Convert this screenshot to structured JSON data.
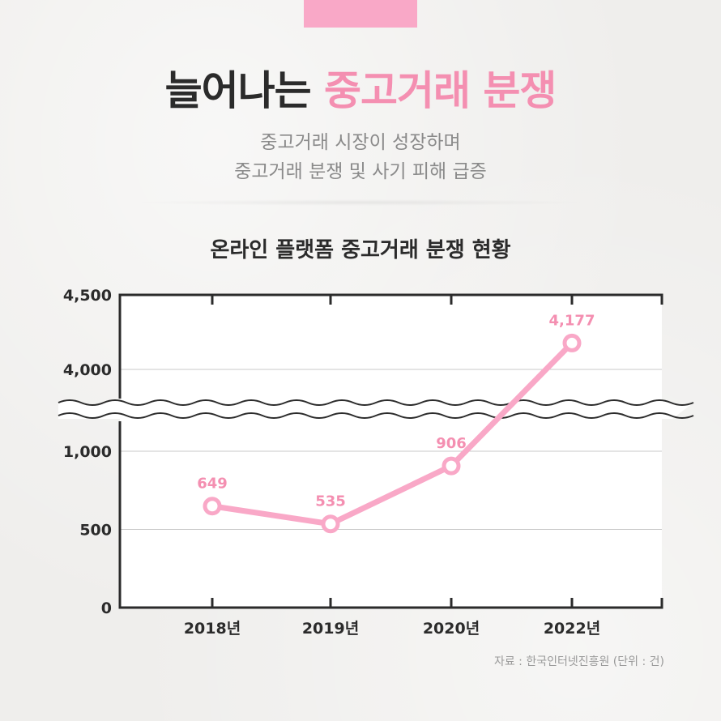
{
  "header": {
    "title_main": "늘어나는",
    "title_accent": "중고거래 분쟁",
    "subtitle_line1": "중고거래 시장이 성장하며",
    "subtitle_line2": "중고거래 분쟁 및 사기 피해 급증"
  },
  "colors": {
    "accent": "#f48fb1",
    "line": "#f9a8c7",
    "text_dark": "#2b2b2b",
    "text_gray": "#8a8a8a"
  },
  "chart_data": {
    "type": "line",
    "title": "온라인 플랫폼 중고거래 분쟁 현황",
    "categories": [
      "2018년",
      "2019년",
      "2020년",
      "2022년"
    ],
    "values": [
      649,
      535,
      906,
      4177
    ],
    "value_labels": [
      "649",
      "535",
      "906",
      "4,177"
    ],
    "y_ticks": [
      0,
      500,
      1000,
      4000,
      4500
    ],
    "y_tick_labels": [
      "0",
      "500",
      "1,000",
      "4,000",
      "4,500"
    ],
    "axis_break": [
      1000,
      4000
    ],
    "ylim": [
      0,
      4500
    ],
    "xlabel": "",
    "ylabel": "",
    "grid": true,
    "legend": "none"
  },
  "footer": {
    "source": "자료 : 한국인터넷진흥원 (단위 : 건)"
  }
}
